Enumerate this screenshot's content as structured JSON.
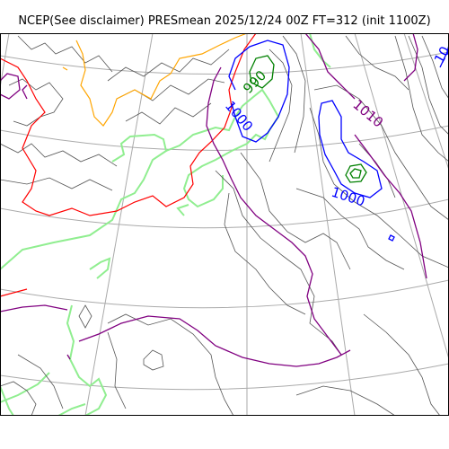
{
  "title": "NCEP(See disclaimer) PRESmean 2025/12/24 00Z FT=312 (init 1100Z)",
  "colors": {
    "frame": "#000000",
    "graticule": "#aaaaaa",
    "coast": "#90ee90",
    "isobar_thin": "#555555",
    "isobar_990": "#008000",
    "isobar_1000": "#0000ff",
    "isobar_1010": "#800080",
    "isobar_orange": "#ffa500",
    "isobar_red": "#ff0000"
  },
  "contour_labels": [
    {
      "text": "990",
      "color": "#008000"
    },
    {
      "text": "1000",
      "color": "#0000ff"
    },
    {
      "text": "1010",
      "color": "#800080"
    },
    {
      "text": "1000",
      "color": "#0000ff"
    },
    {
      "text": "10",
      "color": "#0000ff"
    }
  ]
}
